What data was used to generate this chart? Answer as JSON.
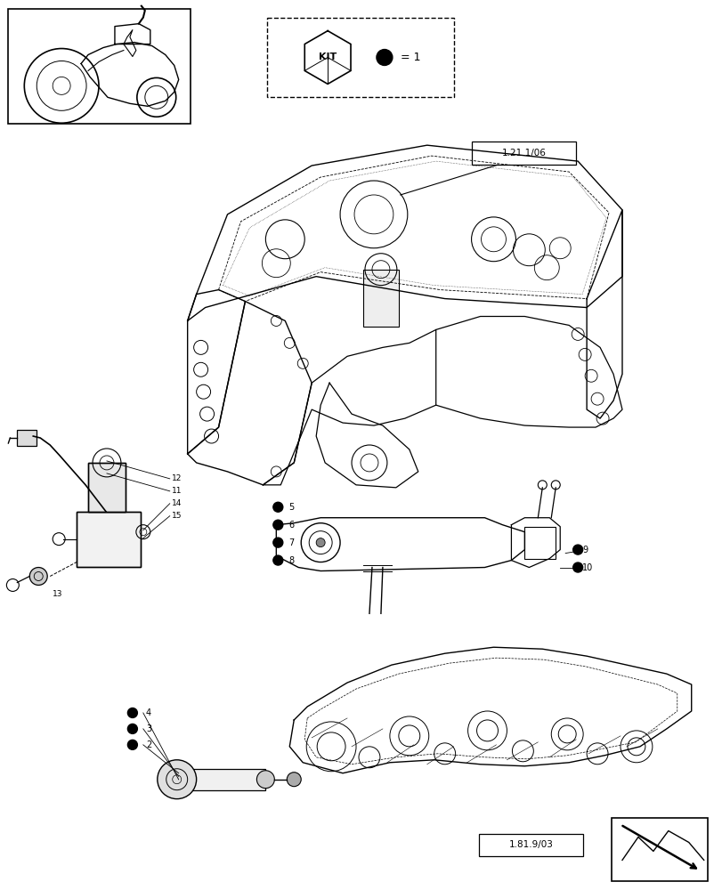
{
  "bg_color": "#ffffff",
  "line_color": "#000000",
  "fig_width": 8.12,
  "fig_height": 10.0,
  "dpi": 100,
  "ref_label_1": "1.21.1/06",
  "ref_label_2": "1.81.9/03",
  "kit_text": "KIT",
  "kit_eq": "= 1"
}
